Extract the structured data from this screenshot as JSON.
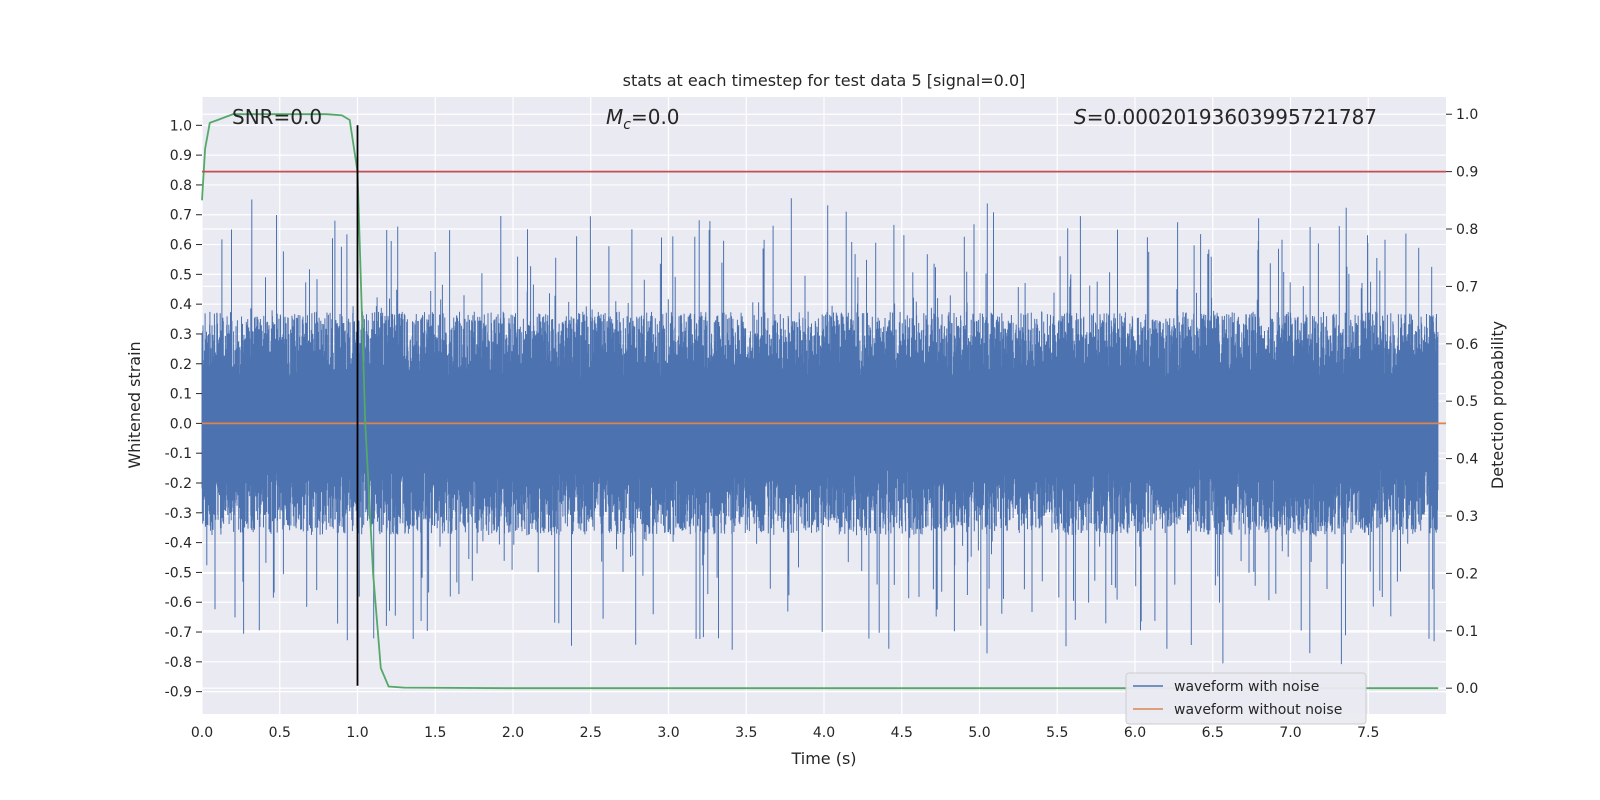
{
  "chart_data": {
    "type": "line",
    "title": "stats at each timestep for test data 5 [signal=0.0]",
    "xlabel": "Time (s)",
    "ylabel_left": "Whitened strain",
    "ylabel_right": "Detection probability",
    "xlim": [
      0.0,
      8.0
    ],
    "ylim_left": [
      -0.975,
      1.095
    ],
    "ylim_right": [
      -0.045,
      1.03
    ],
    "x_ticks": [
      "0.0",
      "0.5",
      "1.0",
      "1.5",
      "2.0",
      "2.5",
      "3.0",
      "3.5",
      "4.0",
      "4.5",
      "5.0",
      "5.5",
      "6.0",
      "6.5",
      "7.0",
      "7.5"
    ],
    "y_left_ticks": [
      "1.0",
      "0.9",
      "0.8",
      "0.7",
      "0.6",
      "0.5",
      "0.4",
      "0.3",
      "0.2",
      "0.1",
      "0.0",
      "-0.1",
      "-0.2",
      "-0.3",
      "-0.4",
      "-0.5",
      "-0.6",
      "-0.7",
      "-0.8",
      "-0.9"
    ],
    "y_right_ticks": [
      "1.0",
      "0.9",
      "0.8",
      "0.7",
      "0.6",
      "0.5",
      "0.4",
      "0.3",
      "0.2",
      "0.1",
      "0.0"
    ],
    "annotations": {
      "snr": "SNR=0.0",
      "mc_symbol": "M",
      "mc_subscript": "c",
      "mc_value": "=0.0",
      "s_symbol": "S",
      "s_value": "=0.00020193603995721787"
    },
    "grid": true,
    "legend_position": "lower-right",
    "series": [
      {
        "name": "waveform with noise",
        "axis": "left",
        "color": "#4c72b0",
        "description_range": [
          -0.88,
          0.97
        ],
        "typical_peak_abs": 0.25
      },
      {
        "name": "waveform without noise",
        "axis": "left",
        "color": "#dd8452",
        "x": [
          0.0,
          8.0
        ],
        "y": [
          0.0,
          0.0
        ]
      },
      {
        "axis": "right",
        "color": "#55a868",
        "x": [
          0.0,
          0.02,
          0.05,
          0.1,
          0.2,
          0.4,
          0.6,
          0.8,
          0.9,
          0.95,
          1.0,
          1.05,
          1.1,
          1.15,
          1.2,
          1.3,
          2.0,
          3.0,
          4.0,
          5.0,
          6.0,
          7.0,
          7.95
        ],
        "y": [
          0.85,
          0.94,
          0.985,
          0.99,
          1.0,
          1.0,
          1.0,
          1.0,
          0.998,
          0.99,
          0.9,
          0.46,
          0.2,
          0.035,
          0.003,
          0.001,
          0.0,
          0.0,
          0.0,
          0.0,
          0.0,
          0.0,
          0.0
        ]
      },
      {
        "axis": "right",
        "color": "#c44e52",
        "x": [
          0.0,
          8.0
        ],
        "y": [
          0.9,
          0.9
        ]
      },
      {
        "axis": "left",
        "color": "#000000",
        "x": [
          1.0,
          1.0
        ],
        "y": [
          -0.88,
          1.0
        ]
      }
    ]
  }
}
